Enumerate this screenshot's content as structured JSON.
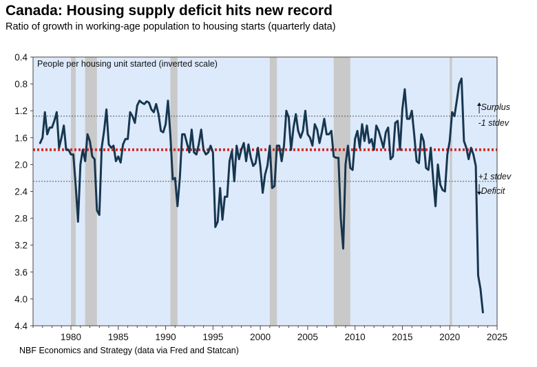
{
  "header": {
    "title": "Canada: Housing supply deficit hits new record",
    "subtitle": "Ratio of growth in working-age population to housing starts (quarterly data)"
  },
  "footer": {
    "source": "NBF Economics and Strategy (data via Fred and Statcan)"
  },
  "colors": {
    "plot_background": "#ddeafb",
    "line": "#17364f",
    "recession": "#c9c9c9",
    "mean_line": "#d42a2a",
    "stdev_line": "#555555"
  },
  "chart_data": {
    "type": "line",
    "title": "Canada: Housing supply deficit hits new record",
    "inner_label": "People per housing unit started (inverted scale)",
    "y_inverted": true,
    "ylim": [
      0.4,
      4.4
    ],
    "xlim": [
      1976,
      2025
    ],
    "yticks": [
      0.4,
      0.8,
      1.2,
      1.6,
      2.0,
      2.4,
      2.8,
      3.2,
      3.6,
      4.0,
      4.4
    ],
    "ytick_labels": [
      "0.4",
      "0.8",
      "1.2",
      "1.6",
      "2.0",
      "2.4",
      "2.8",
      "3.2",
      "3.6",
      "4.0",
      "4.4"
    ],
    "xticks": [
      1980,
      1985,
      1990,
      1995,
      2000,
      2005,
      2010,
      2015,
      2020,
      2025
    ],
    "xtick_labels": [
      "1980",
      "1985",
      "1990",
      "1995",
      "2000",
      "2005",
      "2010",
      "2015",
      "2020",
      "2025"
    ],
    "recessions": [
      [
        1980.0,
        1980.5
      ],
      [
        1981.5,
        1982.75
      ],
      [
        1990.5,
        1991.25
      ],
      [
        2001.0,
        2001.75
      ],
      [
        2007.75,
        2009.5
      ],
      [
        2020.0,
        2020.25
      ]
    ],
    "mean": 1.78,
    "upper_stdev": 1.28,
    "lower_stdev": 2.25,
    "annotations": {
      "surplus": "Surplus",
      "minus_stdev": "-1 stdev",
      "plus_stdev": "+1 stdev",
      "deficit": "Deficit"
    },
    "series": [
      {
        "name": "People per housing unit started",
        "x": [
          1976.75,
          1977.0,
          1977.25,
          1977.5,
          1977.75,
          1978.0,
          1978.25,
          1978.5,
          1978.75,
          1979.0,
          1979.25,
          1979.5,
          1979.75,
          1980.0,
          1980.25,
          1980.5,
          1980.75,
          1981.0,
          1981.25,
          1981.5,
          1981.75,
          1982.0,
          1982.25,
          1982.5,
          1982.75,
          1983.0,
          1983.25,
          1983.5,
          1983.75,
          1984.0,
          1984.25,
          1984.5,
          1984.75,
          1985.0,
          1985.25,
          1985.5,
          1985.75,
          1986.0,
          1986.25,
          1986.5,
          1986.75,
          1987.0,
          1987.25,
          1987.5,
          1987.75,
          1988.0,
          1988.25,
          1988.5,
          1988.75,
          1989.0,
          1989.25,
          1989.5,
          1989.75,
          1990.0,
          1990.25,
          1990.5,
          1990.75,
          1991.0,
          1991.25,
          1991.5,
          1991.75,
          1992.0,
          1992.25,
          1992.5,
          1992.75,
          1993.0,
          1993.25,
          1993.5,
          1993.75,
          1994.0,
          1994.25,
          1994.5,
          1994.75,
          1995.0,
          1995.25,
          1995.5,
          1995.75,
          1996.0,
          1996.25,
          1996.5,
          1996.75,
          1997.0,
          1997.25,
          1997.5,
          1997.75,
          1998.0,
          1998.25,
          1998.5,
          1998.75,
          1999.0,
          1999.25,
          1999.5,
          1999.75,
          2000.0,
          2000.25,
          2000.5,
          2000.75,
          2001.0,
          2001.25,
          2001.5,
          2001.75,
          2002.0,
          2002.25,
          2002.5,
          2002.75,
          2003.0,
          2003.25,
          2003.5,
          2003.75,
          2004.0,
          2004.25,
          2004.5,
          2004.75,
          2005.0,
          2005.25,
          2005.5,
          2005.75,
          2006.0,
          2006.25,
          2006.5,
          2006.75,
          2007.0,
          2007.25,
          2007.5,
          2007.75,
          2008.0,
          2008.25,
          2008.5,
          2008.75,
          2009.0,
          2009.25,
          2009.5,
          2009.75,
          2010.0,
          2010.25,
          2010.5,
          2010.75,
          2011.0,
          2011.25,
          2011.5,
          2011.75,
          2012.0,
          2012.25,
          2012.5,
          2012.75,
          2013.0,
          2013.25,
          2013.5,
          2013.75,
          2014.0,
          2014.25,
          2014.5,
          2014.75,
          2015.0,
          2015.25,
          2015.5,
          2015.75,
          2016.0,
          2016.25,
          2016.5,
          2016.75,
          2017.0,
          2017.25,
          2017.5,
          2017.75,
          2018.0,
          2018.25,
          2018.5,
          2018.75,
          2019.0,
          2019.25,
          2019.5,
          2019.75,
          2020.0,
          2020.25,
          2020.5,
          2020.75,
          2021.0,
          2021.25,
          2021.5,
          2021.75,
          2022.0,
          2022.25,
          2022.5,
          2022.75,
          2023.0,
          2023.25,
          2023.5
        ],
        "values": [
          1.68,
          1.6,
          1.22,
          1.55,
          1.45,
          1.45,
          1.35,
          1.22,
          1.75,
          1.6,
          1.42,
          1.78,
          1.78,
          1.85,
          1.85,
          2.3,
          2.85,
          2.0,
          1.78,
          1.95,
          1.55,
          1.65,
          1.88,
          1.92,
          2.68,
          2.75,
          1.75,
          1.5,
          1.18,
          1.7,
          1.75,
          1.72,
          1.95,
          1.88,
          1.97,
          1.7,
          1.62,
          1.62,
          1.22,
          1.28,
          1.38,
          1.12,
          1.05,
          1.08,
          1.1,
          1.06,
          1.08,
          1.18,
          1.22,
          1.1,
          1.25,
          1.5,
          1.52,
          1.4,
          1.05,
          1.55,
          2.22,
          2.2,
          2.62,
          2.2,
          1.55,
          1.55,
          1.68,
          1.82,
          1.48,
          1.82,
          1.85,
          1.7,
          1.48,
          1.78,
          1.85,
          1.82,
          1.72,
          1.82,
          2.93,
          2.85,
          2.35,
          2.82,
          2.48,
          2.48,
          1.95,
          1.8,
          2.25,
          1.72,
          1.92,
          1.78,
          1.68,
          1.95,
          1.7,
          1.9,
          2.02,
          1.98,
          1.75,
          2.02,
          2.42,
          2.15,
          2.02,
          1.72,
          2.35,
          2.32,
          1.72,
          1.72,
          1.95,
          1.72,
          1.2,
          1.3,
          1.78,
          1.45,
          1.25,
          1.5,
          1.6,
          1.5,
          1.2,
          1.55,
          1.6,
          1.72,
          1.4,
          1.48,
          1.68,
          1.52,
          1.32,
          1.55,
          1.55,
          1.5,
          1.88,
          1.9,
          1.9,
          2.8,
          3.25,
          2.0,
          1.72,
          2.05,
          2.08,
          1.62,
          1.5,
          1.75,
          1.4,
          1.65,
          1.42,
          1.68,
          1.62,
          1.78,
          1.42,
          1.5,
          1.62,
          1.75,
          1.52,
          1.45,
          1.92,
          1.88,
          1.38,
          1.35,
          1.78,
          1.18,
          0.88,
          1.32,
          1.32,
          1.2,
          1.55,
          1.95,
          1.98,
          1.55,
          1.65,
          2.05,
          2.08,
          1.75,
          2.22,
          2.62,
          2.0,
          2.3,
          2.38,
          2.4,
          1.85,
          1.65,
          1.22,
          1.28,
          1.05,
          0.8,
          0.72,
          1.65,
          1.75,
          1.92,
          1.75,
          1.85,
          2.02,
          3.65,
          3.85,
          4.2
        ]
      }
    ]
  }
}
